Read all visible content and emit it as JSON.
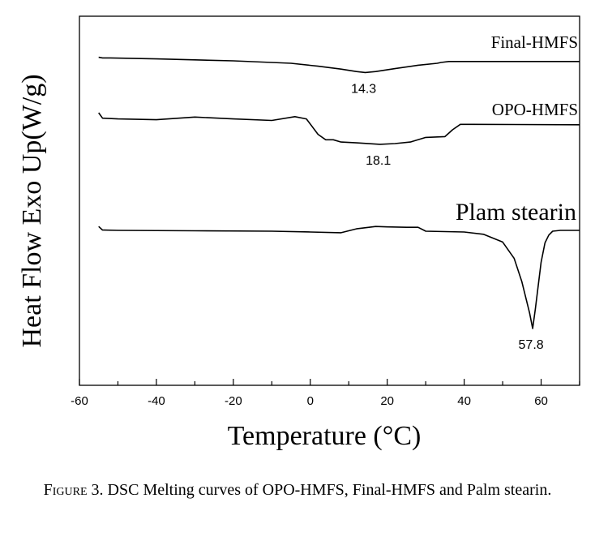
{
  "chart_data": {
    "type": "line",
    "xlabel": "Temperature (°C)",
    "ylabel": "Heat Flow Exo Up(W/g)",
    "xlim": [
      -60,
      70
    ],
    "xticks": [
      -60,
      -40,
      -20,
      0,
      20,
      40,
      60
    ],
    "yticks_shown": false,
    "grid": false,
    "series": [
      {
        "name": "Final-HMFS",
        "peak_label": "14.3",
        "peak_x": 14.3,
        "points": [
          [
            -55,
            0.62
          ],
          [
            -54,
            0.55
          ],
          [
            -52,
            0.55
          ],
          [
            -40,
            0.45
          ],
          [
            -20,
            0.25
          ],
          [
            -5,
            0.0
          ],
          [
            2,
            -0.3
          ],
          [
            8,
            -0.6
          ],
          [
            12,
            -0.85
          ],
          [
            14.3,
            -0.95
          ],
          [
            17,
            -0.85
          ],
          [
            22,
            -0.55
          ],
          [
            28,
            -0.2
          ],
          [
            33,
            0.0
          ],
          [
            34,
            0.08
          ],
          [
            36,
            0.18
          ],
          [
            40,
            0.18
          ],
          [
            70,
            0.18
          ]
        ]
      },
      {
        "name": "OPO-HMFS",
        "peak_label": "18.1",
        "peak_x": 18.1,
        "points": [
          [
            -55,
            1.0
          ],
          [
            -54,
            0.65
          ],
          [
            -50,
            0.6
          ],
          [
            -40,
            0.55
          ],
          [
            -30,
            0.72
          ],
          [
            -20,
            0.6
          ],
          [
            -10,
            0.5
          ],
          [
            -4,
            0.75
          ],
          [
            -1,
            0.6
          ],
          [
            2,
            -0.4
          ],
          [
            4,
            -0.75
          ],
          [
            6,
            -0.75
          ],
          [
            8,
            -0.9
          ],
          [
            12,
            -0.95
          ],
          [
            18.1,
            -1.05
          ],
          [
            22,
            -1.0
          ],
          [
            26,
            -0.9
          ],
          [
            30,
            -0.6
          ],
          [
            35,
            -0.55
          ],
          [
            37,
            -0.1
          ],
          [
            39,
            0.25
          ],
          [
            42,
            0.25
          ],
          [
            70,
            0.22
          ]
        ]
      },
      {
        "name": "Plam stearin",
        "peak_label": "57.8",
        "peak_x": 57.8,
        "points": [
          [
            -55,
            0.6
          ],
          [
            -54,
            0.15
          ],
          [
            -50,
            0.1
          ],
          [
            -30,
            0.05
          ],
          [
            -10,
            0.0
          ],
          [
            0,
            -0.1
          ],
          [
            8,
            -0.2
          ],
          [
            12,
            0.3
          ],
          [
            17,
            0.6
          ],
          [
            20,
            0.55
          ],
          [
            25,
            0.5
          ],
          [
            28,
            0.5
          ],
          [
            30,
            0.0
          ],
          [
            35,
            -0.05
          ],
          [
            40,
            -0.1
          ],
          [
            45,
            -0.4
          ],
          [
            50,
            -1.4
          ],
          [
            53,
            -3.5
          ],
          [
            55,
            -6.5
          ],
          [
            57,
            -10.5
          ],
          [
            57.8,
            -12.5
          ],
          [
            58.5,
            -10.0
          ],
          [
            60,
            -4.0
          ],
          [
            61,
            -1.5
          ],
          [
            62,
            -0.5
          ],
          [
            63,
            0.0
          ],
          [
            65,
            0.1
          ],
          [
            70,
            0.1
          ]
        ]
      }
    ]
  },
  "caption": {
    "figure_label": "Figure 3.",
    "text": "DSC Melting curves of OPO-HMFS, Final-HMFS and Palm stearin."
  }
}
